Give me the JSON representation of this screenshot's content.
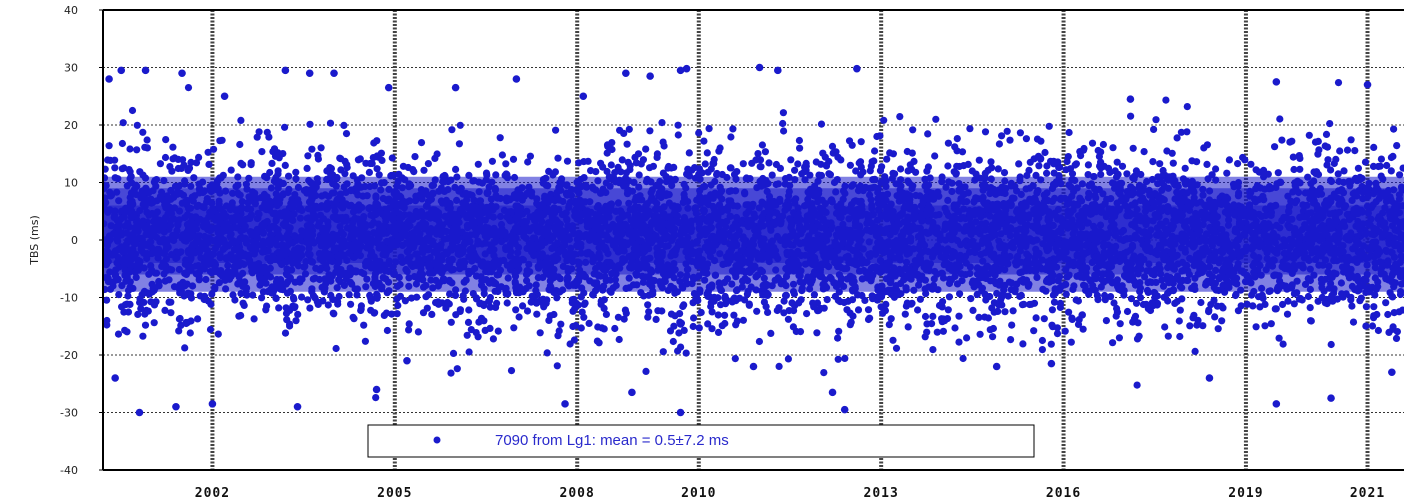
{
  "chart_data": {
    "type": "scatter",
    "ylabel": "TBS (ms)",
    "ylim": [
      -40,
      40
    ],
    "xlim": [
      2000.2,
      2021.6
    ],
    "yticks": [
      -40,
      -30,
      -20,
      -10,
      0,
      10,
      20,
      30,
      40
    ],
    "xtick_labels": [
      {
        "x": 2002,
        "label": "2002"
      },
      {
        "x": 2005,
        "label": "2005"
      },
      {
        "x": 2008,
        "label": "2008"
      },
      {
        "x": 2010,
        "label": "2010"
      },
      {
        "x": 2013,
        "label": "2013"
      },
      {
        "x": 2016,
        "label": "2016"
      },
      {
        "x": 2019,
        "label": "2019"
      },
      {
        "x": 2021,
        "label": "2021"
      }
    ],
    "grid_x": [
      2002,
      2005,
      2008,
      2010,
      2013,
      2016,
      2019,
      2021
    ],
    "grid_y": [
      -30,
      -20,
      -10,
      0,
      10,
      20,
      30
    ],
    "grid": true,
    "legend": {
      "placement": "bottom-center",
      "entries": [
        {
          "label": "7090 from Lg1:  mean = 0.5±7.2 ms",
          "color": "#1a1acc"
        }
      ]
    },
    "series": [
      {
        "color": "#1a1acc",
        "count": 7090,
        "mean": 0.5,
        "std": 7.2,
        "points_note": "sample of visible outliers",
        "points": [
          [
            2000.3,
            28
          ],
          [
            2000.5,
            29.5
          ],
          [
            2000.9,
            29.5
          ],
          [
            2001.5,
            29
          ],
          [
            2002.2,
            25
          ],
          [
            2003.2,
            29.5
          ],
          [
            2003.6,
            29
          ],
          [
            2004.0,
            29
          ],
          [
            2004.9,
            26.5
          ],
          [
            2006.0,
            26.5
          ],
          [
            2007.0,
            28
          ],
          [
            2008.1,
            25
          ],
          [
            2008.8,
            29
          ],
          [
            2009.2,
            28.5
          ],
          [
            2009.7,
            29.5
          ],
          [
            2009.8,
            29.8
          ],
          [
            2011.0,
            30
          ],
          [
            2011.3,
            29.5
          ],
          [
            2012.6,
            29.8
          ],
          [
            2017.1,
            24.5
          ],
          [
            2019.5,
            27.5
          ],
          [
            2021.0,
            27
          ],
          [
            2000.4,
            -24
          ],
          [
            2000.8,
            -30
          ],
          [
            2001.4,
            -29
          ],
          [
            2002.0,
            -28.5
          ],
          [
            2003.4,
            -29
          ],
          [
            2004.7,
            -26
          ],
          [
            2005.2,
            -21
          ],
          [
            2007.8,
            -28.5
          ],
          [
            2008.9,
            -26.5
          ],
          [
            2009.7,
            -30
          ],
          [
            2010.9,
            -22
          ],
          [
            2012.2,
            -26.5
          ],
          [
            2012.4,
            -29.5
          ],
          [
            2014.9,
            -22
          ],
          [
            2015.8,
            -21.5
          ],
          [
            2018.4,
            -24
          ],
          [
            2019.5,
            -28.5
          ],
          [
            2020.4,
            -27.5
          ],
          [
            2021.4,
            -23
          ]
        ]
      }
    ]
  }
}
